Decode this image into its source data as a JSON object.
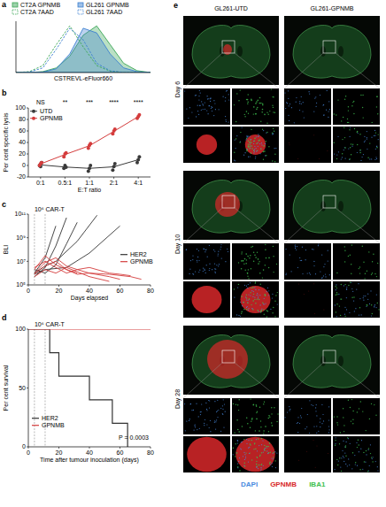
{
  "chart_data": [
    {
      "panel": "a",
      "type": "area",
      "x_label": "CSTREVL-eFluor660",
      "x": [
        0,
        1,
        2,
        3,
        4,
        5,
        6,
        7,
        8,
        9,
        10
      ],
      "xlim": [
        0,
        10
      ],
      "ylim": [
        0,
        1.1
      ],
      "tick_labels": false,
      "legend": "top",
      "series": [
        {
          "name": "CT2A GPNMB",
          "color": "#3aa655",
          "type": "area",
          "line_style": "solid",
          "values": [
            0,
            0,
            0.02,
            0.1,
            0.35,
            0.8,
            1.0,
            0.6,
            0.2,
            0.04,
            0
          ]
        },
        {
          "name": "GL261 GPNMB",
          "color": "#3b7fd0",
          "type": "area",
          "line_style": "solid",
          "values": [
            0,
            0,
            0.01,
            0.08,
            0.4,
            0.95,
            0.85,
            0.4,
            0.1,
            0.02,
            0
          ]
        },
        {
          "name": "CT2A 7AAD",
          "color": "#3aa655",
          "type": "line",
          "line_style": "dashed",
          "values": [
            0,
            0.02,
            0.15,
            0.6,
            1.0,
            0.55,
            0.15,
            0.03,
            0,
            0,
            0
          ]
        },
        {
          "name": "GL261 7AAD",
          "color": "#3b7fd0",
          "type": "line",
          "line_style": "dashed",
          "values": [
            0,
            0.01,
            0.1,
            0.5,
            0.95,
            0.7,
            0.2,
            0.04,
            0,
            0,
            0
          ]
        }
      ]
    },
    {
      "panel": "b",
      "type": "line",
      "categories": [
        "0:1",
        "0.5:1",
        "1:1",
        "2:1",
        "4:1"
      ],
      "x_label": "E:T ratio",
      "y_label": "Per cent specific lysis",
      "ylim": [
        -20,
        100
      ],
      "yticks": [
        -20,
        0,
        20,
        40,
        60,
        80,
        100
      ],
      "annotations": [
        "NS",
        "**",
        "***",
        "****",
        "****"
      ],
      "legend": "top-left",
      "marker": "circle",
      "series": [
        {
          "name": "UTD",
          "color": "#3a3a3a",
          "values": [
            1,
            -2.7,
            -5,
            -2.3,
            10
          ],
          "replicates": [
            [
              0,
              -2,
              5
            ],
            [
              -5,
              0,
              -3
            ],
            [
              -10,
              -5,
              0
            ],
            [
              -8,
              -2,
              3
            ],
            [
              5,
              10,
              15
            ]
          ]
        },
        {
          "name": "GPNMB",
          "color": "#d43c3c",
          "values": [
            2.7,
            19,
            34.3,
            59.3,
            85
          ],
          "replicates": [
            [
              0,
              3,
              5
            ],
            [
              15,
              20,
              22
            ],
            [
              30,
              35,
              38
            ],
            [
              55,
              60,
              63
            ],
            [
              82,
              85,
              88
            ]
          ]
        }
      ]
    },
    {
      "panel": "c",
      "type": "line",
      "log": "y",
      "x_label": "Days elapsed",
      "y_label": "BLI",
      "xlim": [
        0,
        80
      ],
      "xticks": [
        0,
        20,
        40,
        60,
        80
      ],
      "ylim": [
        100000,
        100000000000
      ],
      "yticks": [
        {
          "value": 100000,
          "label": "10⁵"
        },
        {
          "value": 10000000,
          "label": "10⁷"
        },
        {
          "value": 1000000000,
          "label": "10⁹"
        },
        {
          "value": 100000000000,
          "label": "10¹¹"
        }
      ],
      "dose_days": [
        4,
        11
      ],
      "annotation": "10⁶ CAR-T",
      "legend": "right",
      "series": [
        {
          "name": "HER2",
          "color": "#333333",
          "x": [
            4,
            11,
            18
          ],
          "values": [
            1000000,
            20000000,
            10000000000
          ]
        },
        {
          "name": "HER2",
          "color": "#333333",
          "x": [
            4,
            11,
            18,
            25
          ],
          "values": [
            500000,
            3000000,
            200000000,
            50000000000
          ]
        },
        {
          "name": "HER2",
          "color": "#333333",
          "x": [
            4,
            11,
            18,
            25,
            32
          ],
          "values": [
            2000000,
            1000000,
            5000000,
            300000000,
            20000000000
          ]
        },
        {
          "name": "HER2",
          "color": "#333333",
          "x": [
            4,
            11,
            18,
            32,
            45
          ],
          "values": [
            1000000,
            4000000,
            10000000,
            500000000,
            80000000000
          ]
        },
        {
          "name": "HER2",
          "color": "#333333",
          "x": [
            4,
            11,
            25,
            40,
            60
          ],
          "values": [
            800000,
            2000000,
            3000000,
            50000000,
            10000000000
          ]
        },
        {
          "name": "GPNMB",
          "color": "#d43c3c",
          "x": [
            4,
            11,
            18,
            25,
            32,
            40,
            53,
            60
          ],
          "values": [
            2000000,
            30000000,
            5000000,
            2000000,
            800000,
            1000000,
            500000,
            300000
          ]
        },
        {
          "name": "GPNMB",
          "color": "#d43c3c",
          "x": [
            4,
            11,
            18,
            25,
            32,
            40,
            53,
            60,
            67
          ],
          "values": [
            1000000,
            8000000,
            20000000,
            4000000,
            2000000,
            3000000,
            1000000,
            800000,
            600000
          ]
        },
        {
          "name": "GPNMB",
          "color": "#d43c3c",
          "x": [
            4,
            11,
            18,
            25,
            40,
            53
          ],
          "values": [
            500000,
            2000000,
            1000000,
            3000000,
            500000,
            200000
          ]
        },
        {
          "name": "GPNMB",
          "color": "#d43c3c",
          "x": [
            4,
            11,
            18,
            25,
            32,
            40,
            53,
            67,
            74
          ],
          "values": [
            3000000,
            10000000,
            3000000,
            1000000,
            2000000,
            1000000,
            800000,
            500000,
            300000
          ]
        },
        {
          "name": "GPNMB",
          "color": "#d43c3c",
          "x": [
            4,
            11,
            18,
            25,
            32
          ],
          "values": [
            800000,
            4000000,
            10000000,
            2000000,
            1000000
          ]
        }
      ]
    },
    {
      "panel": "d",
      "type": "line",
      "line_style": "step",
      "x_label": "Time after tumour inoculation (days)",
      "y_label": "Per cent survival",
      "xlim": [
        0,
        80
      ],
      "xticks": [
        0,
        20,
        40,
        60,
        80
      ],
      "ylim": [
        0,
        100
      ],
      "yticks": [
        0,
        50,
        100
      ],
      "dose_days": [
        4,
        11
      ],
      "annotation": "10⁶ CAR-T",
      "p_value": "P = 0.0003",
      "legend": "bottom-left",
      "series": [
        {
          "name": "HER2",
          "color": "#333333",
          "x": [
            0,
            14,
            20,
            40,
            55,
            65
          ],
          "values": [
            100,
            80,
            60,
            40,
            20,
            0
          ]
        },
        {
          "name": "GPNMB",
          "color": "#d43c3c",
          "x": [
            0,
            80
          ],
          "values": [
            100,
            100
          ]
        }
      ]
    }
  ],
  "panel_e": {
    "panel": "e",
    "columns": [
      "GL261-UTD",
      "GL261-GPNMB"
    ],
    "rows": [
      "Day 6",
      "Day 10",
      "Day 28"
    ],
    "channels": [
      {
        "name": "DAPI",
        "color": "#4a8be0"
      },
      {
        "name": "GPNMB",
        "color": "#d8282a"
      },
      {
        "name": "IBA1",
        "color": "#3fbf4f"
      }
    ]
  }
}
